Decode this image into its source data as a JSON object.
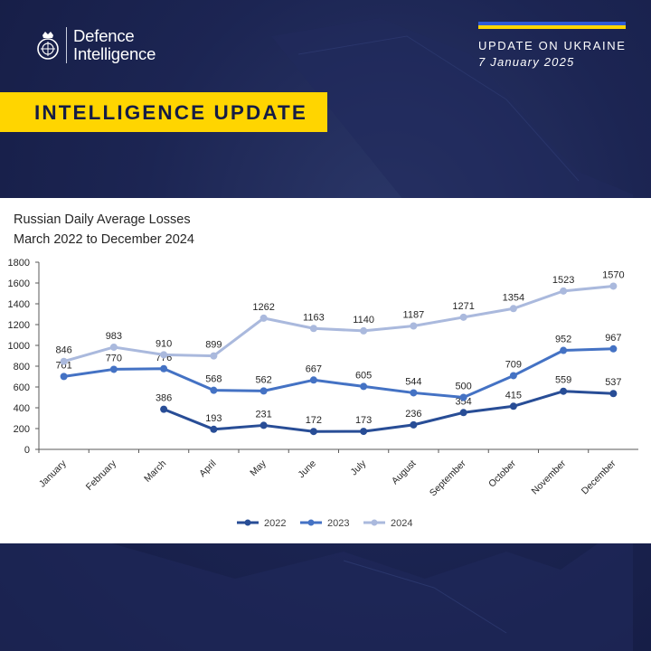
{
  "header": {
    "logo_text_line1": "Defence",
    "logo_text_line2": "Intelligence",
    "update_title": "UPDATE ON UKRAINE",
    "update_date": "7 January 2025",
    "banner_label": "INTELLIGENCE UPDATE"
  },
  "colors": {
    "background": "#1c2553",
    "banner": "#ffd500",
    "flag_blue": "#2f5bd6",
    "flag_yellow": "#ffd500",
    "series_2022": "#284d96",
    "series_2023": "#4472c4",
    "series_2024": "#aab9dd"
  },
  "chart_data": {
    "type": "line",
    "title_line1": "Russian Daily Average Losses",
    "title_line2": "March 2022 to December 2024",
    "categories": [
      "January",
      "February",
      "March",
      "April",
      "May",
      "June",
      "July",
      "August",
      "September",
      "October",
      "November",
      "December"
    ],
    "series": [
      {
        "name": "2022",
        "color": "#284d96",
        "values": [
          null,
          null,
          386,
          193,
          231,
          172,
          173,
          236,
          354,
          415,
          559,
          537
        ]
      },
      {
        "name": "2023",
        "color": "#4472c4",
        "values": [
          701,
          770,
          776,
          568,
          562,
          667,
          605,
          544,
          500,
          709,
          952,
          967
        ]
      },
      {
        "name": "2024",
        "color": "#aab9dd",
        "values": [
          846,
          983,
          910,
          899,
          1262,
          1163,
          1140,
          1187,
          1271,
          1354,
          1523,
          1570
        ]
      }
    ],
    "ylim": [
      0,
      1800
    ],
    "yticks": [
      0,
      200,
      400,
      600,
      800,
      1000,
      1200,
      1400,
      1600,
      1800
    ],
    "grid": false,
    "legend_position": "bottom"
  }
}
